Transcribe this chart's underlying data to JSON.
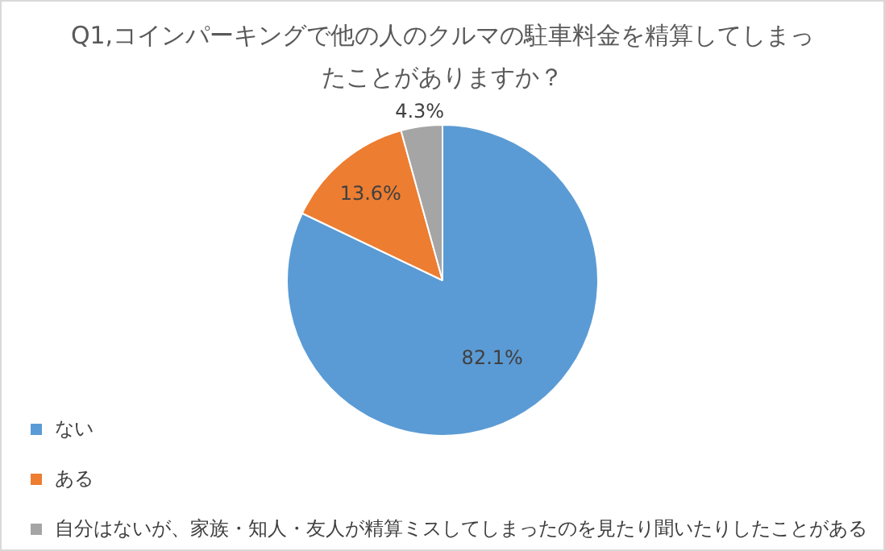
{
  "chart_data": {
    "type": "pie",
    "title": "Q1,コインパーキングで他の人のクルマの駐車料金を精算してしまったことがありますか？",
    "categories": [
      "ない",
      "ある",
      "自分はないが、家族・知人・友人が精算ミスしてしまったのを見たり聞いたりしたことがある"
    ],
    "values": [
      82.1,
      13.6,
      4.3
    ],
    "colors": [
      "#5b9bd5",
      "#ed7d31",
      "#a5a5a5"
    ],
    "value_labels": [
      "82.1%",
      "13.6%",
      "4.3%"
    ],
    "legend": "bottom left"
  }
}
